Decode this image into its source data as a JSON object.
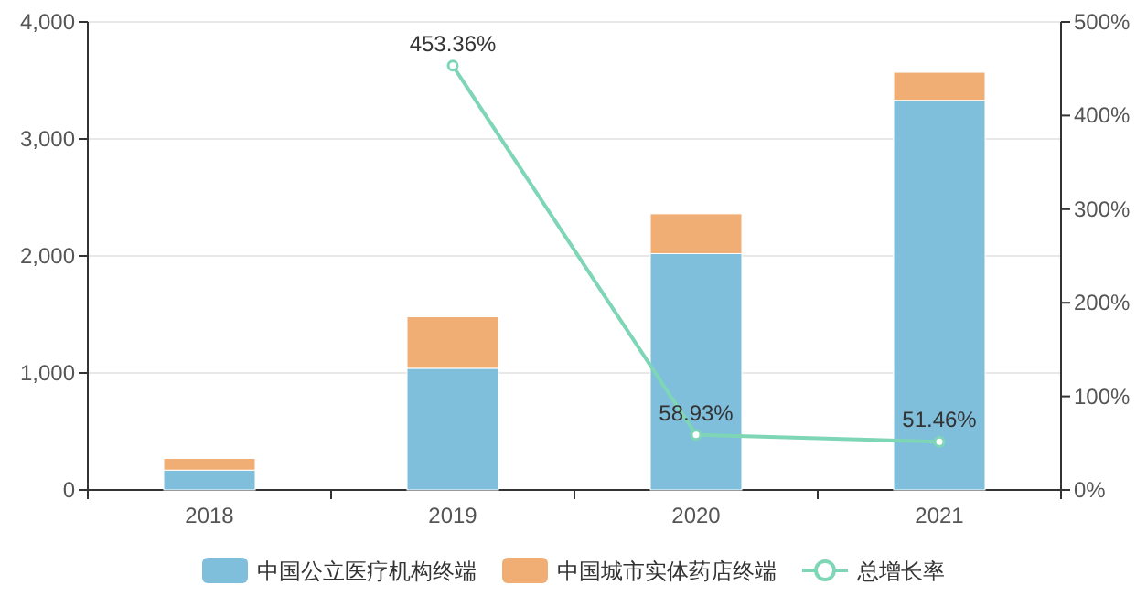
{
  "chart_data": {
    "type": "bar",
    "stacked": true,
    "categories": [
      "2018",
      "2019",
      "2020",
      "2021"
    ],
    "series": [
      {
        "name": "中国公立医疗机构终端",
        "color": "#7fbfdc",
        "values": [
          170,
          1040,
          2020,
          3330
        ]
      },
      {
        "name": "中国城市实体药店终端",
        "color": "#f0ae74",
        "values": [
          100,
          440,
          340,
          240
        ]
      },
      {
        "name": "总增长率",
        "type": "line",
        "axis": "y2",
        "color": "#7ed6b6",
        "marker": "circle",
        "values": [
          null,
          453.36,
          58.93,
          51.46
        ],
        "value_labels": [
          null,
          "453.36%",
          "58.93%",
          "51.46%"
        ]
      }
    ],
    "ylim": [
      0,
      4000
    ],
    "yticks": [
      0,
      {
        "value": 1000,
        "label": "1,000"
      },
      {
        "value": 2000,
        "label": "2,000"
      },
      {
        "value": 3000,
        "label": "3,000"
      },
      {
        "value": 4000,
        "label": "4,000"
      }
    ],
    "y2lim": [
      0,
      500
    ],
    "y2ticks": [
      {
        "value": 0,
        "label": "0%"
      },
      {
        "value": 100,
        "label": "100%"
      },
      {
        "value": 200,
        "label": "200%"
      },
      {
        "value": 300,
        "label": "300%"
      },
      {
        "value": 400,
        "label": "400%"
      },
      {
        "value": 500,
        "label": "500%"
      }
    ],
    "grid": "y",
    "legend": "bottom"
  }
}
